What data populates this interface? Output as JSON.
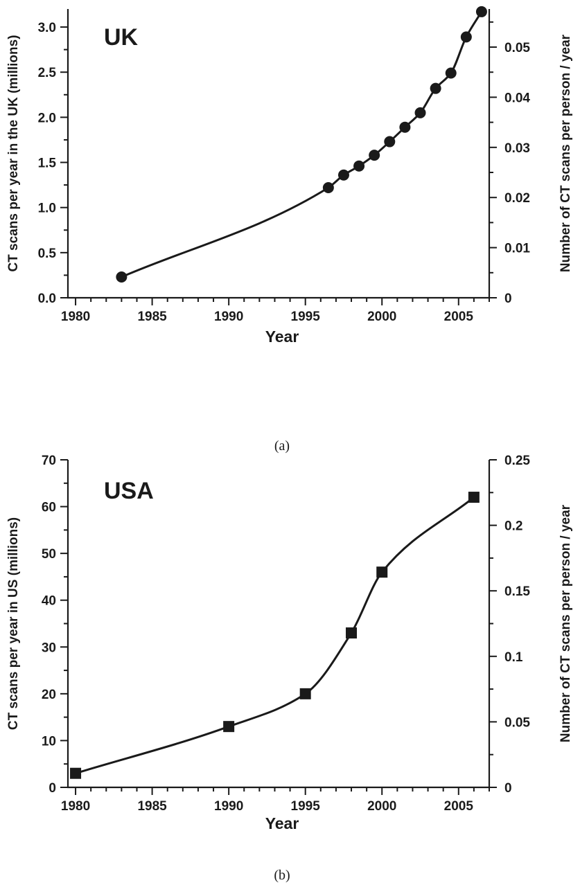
{
  "chart_data": [
    {
      "type": "line",
      "panel_label": "UK",
      "caption": "(a)",
      "xlabel": "Year",
      "ylabel": "CT scans per year in the UK (millions)",
      "y2label": "Number of CT scans per person / year",
      "xlim": [
        1979.5,
        2007
      ],
      "ylim": [
        0,
        3.2
      ],
      "y2lim": [
        0,
        0.0576
      ],
      "x_ticks": [
        1980,
        1985,
        1990,
        1995,
        2000,
        2005
      ],
      "y_ticks": [
        "0.0",
        "0.5",
        "1.0",
        "1.5",
        "2.0",
        "2.5",
        "3.0"
      ],
      "y2_ticks": [
        "0",
        "0.01",
        "0.02",
        "0.03",
        "0.04",
        "0.05"
      ],
      "marker": "circle",
      "grid": false,
      "series": [
        {
          "x": [
            1983,
            1996.5,
            1997.5,
            1998.5,
            1999.5,
            2000.5,
            2001.5,
            2002.5,
            2003.5,
            2004.5,
            2005.5,
            2006.5
          ],
          "values": [
            0.23,
            1.22,
            1.36,
            1.46,
            1.58,
            1.73,
            1.89,
            2.05,
            2.32,
            2.49,
            2.89,
            3.17
          ]
        }
      ]
    },
    {
      "type": "line",
      "panel_label": "USA",
      "caption": "(b)",
      "xlabel": "Year",
      "ylabel": "CT scans per year in US (millions)",
      "y2label": "Number of CT scans per person / year",
      "xlim": [
        1979.5,
        2007
      ],
      "ylim": [
        0,
        70
      ],
      "y2lim": [
        0,
        0.25
      ],
      "x_ticks": [
        1980,
        1985,
        1990,
        1995,
        2000,
        2005
      ],
      "y_ticks": [
        "0",
        "10",
        "20",
        "30",
        "40",
        "50",
        "60",
        "70"
      ],
      "y2_ticks": [
        "0",
        "0.05",
        "0.1",
        "0.15",
        "0.2",
        "0.25"
      ],
      "marker": "square",
      "grid": false,
      "series": [
        {
          "x": [
            1980,
            1990,
            1995,
            1998,
            2000,
            2006
          ],
          "values": [
            3,
            13,
            20,
            33,
            46,
            62
          ]
        }
      ]
    }
  ]
}
